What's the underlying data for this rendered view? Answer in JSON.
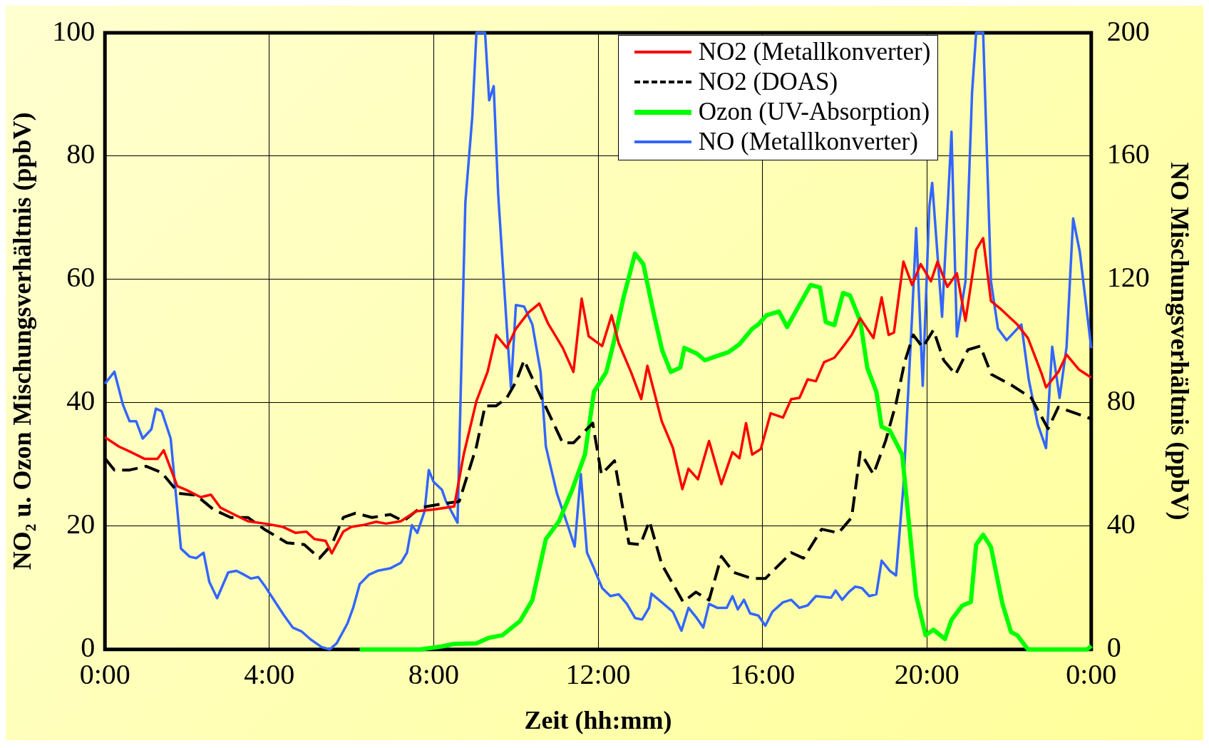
{
  "chart_data": {
    "type": "line",
    "xlabel": "Zeit (hh:mm)",
    "ylabel": "NO₂ u. Ozon Mischungsverhältnis (ppbV)",
    "y2label": "NO Mischungsverhältnis (ppbV)",
    "xlim": [
      0,
      24
    ],
    "xticks": [
      {
        "value": 0,
        "label": "0:00"
      },
      {
        "value": 4,
        "label": "4:00"
      },
      {
        "value": 8,
        "label": "8:00"
      },
      {
        "value": 12,
        "label": "12:00"
      },
      {
        "value": 16,
        "label": "16:00"
      },
      {
        "value": 20,
        "label": "20:00"
      },
      {
        "value": 24,
        "label": "0:00"
      }
    ],
    "ylim": [
      0,
      100
    ],
    "yticks": [
      0,
      20,
      40,
      60,
      80,
      100
    ],
    "y2lim": [
      0,
      200
    ],
    "y2ticks": [
      0,
      40,
      80,
      120,
      160,
      200
    ],
    "grid": true,
    "legend": "top right",
    "marker": "none",
    "series": [
      {
        "name": "NO2 (Metallkonverter)",
        "color": "#ff0000",
        "x": [
          0,
          0.34,
          0.6,
          0.97,
          1.28,
          1.43,
          1.76,
          2.0,
          2.33,
          2.58,
          2.81,
          3.17,
          3.48,
          3.9,
          4.32,
          4.64,
          4.9,
          5.1,
          5.37,
          5.52,
          5.8,
          6.0,
          6.3,
          6.6,
          6.84,
          7.2,
          7.57,
          8.0,
          8.5,
          8.73,
          9.04,
          9.31,
          9.52,
          9.78,
          10.0,
          10.3,
          10.57,
          10.78,
          11.14,
          11.4,
          11.6,
          11.77,
          12.1,
          12.33,
          12.5,
          12.8,
          13.05,
          13.2,
          13.55,
          13.82,
          14.05,
          14.2,
          14.43,
          14.7,
          15.0,
          15.27,
          15.44,
          15.6,
          15.75,
          15.96,
          16.2,
          16.5,
          16.7,
          16.9,
          17.1,
          17.3,
          17.5,
          17.75,
          17.96,
          18.17,
          18.38,
          18.7,
          18.9,
          19.07,
          19.2,
          19.43,
          19.64,
          19.85,
          20.1,
          20.26,
          20.5,
          20.73,
          20.94,
          21.2,
          21.37,
          21.56,
          21.8,
          22.2,
          22.46,
          22.8,
          22.9,
          23.2,
          23.4,
          23.7,
          24
        ],
        "values": [
          34.4,
          32.9,
          32.1,
          30.9,
          30.9,
          32.3,
          26.5,
          25.8,
          24.7,
          25.1,
          23.0,
          21.8,
          20.8,
          20.4,
          19.9,
          18.9,
          19.1,
          17.9,
          17.6,
          15.6,
          19.1,
          19.9,
          20.2,
          20.7,
          20.4,
          20.8,
          22.4,
          22.7,
          23.2,
          31.6,
          40.3,
          45.0,
          51.0,
          48.9,
          52.0,
          54.6,
          56.1,
          52.9,
          48.9,
          45.0,
          56.9,
          50.8,
          49.2,
          54.2,
          49.7,
          45.0,
          40.6,
          46.0,
          37.0,
          32.7,
          26.0,
          29.3,
          27.6,
          33.8,
          26.8,
          32.0,
          31.0,
          36.7,
          31.6,
          32.5,
          38.3,
          37.6,
          40.6,
          40.8,
          43.8,
          43.5,
          46.6,
          47.3,
          49.1,
          51.0,
          53.7,
          50.5,
          57.1,
          51.0,
          51.4,
          62.9,
          59.1,
          62.5,
          59.7,
          62.9,
          58.8,
          61.0,
          53.3,
          64.8,
          66.7,
          56.5,
          55.2,
          52.7,
          50.5,
          44.6,
          42.5,
          45.0,
          47.8,
          45.4,
          44.1
        ]
      },
      {
        "name": "NO2 (DOAS)",
        "color": "#000000",
        "line_style": "dashed",
        "x": [
          0,
          0.23,
          0.6,
          1.0,
          1.38,
          1.8,
          2.22,
          2.64,
          3.06,
          3.48,
          3.9,
          4.43,
          4.85,
          5.22,
          5.52,
          5.8,
          6.1,
          6.5,
          6.94,
          7.26,
          7.68,
          8.2,
          8.62,
          9.04,
          9.25,
          9.52,
          9.78,
          10.0,
          10.2,
          10.5,
          11.14,
          11.4,
          11.87,
          12.08,
          12.4,
          12.75,
          13.03,
          13.25,
          13.55,
          14.07,
          14.38,
          14.7,
          15.0,
          15.3,
          15.75,
          16.07,
          16.7,
          17.0,
          17.44,
          17.85,
          18.17,
          18.38,
          18.7,
          19.0,
          19.25,
          19.46,
          19.67,
          19.9,
          20.16,
          20.41,
          20.7,
          21.0,
          21.3,
          21.57,
          22.05,
          22.54,
          22.95,
          23.2,
          24
        ],
        "values": [
          31.0,
          29.1,
          29.1,
          29.7,
          28.7,
          25.3,
          25.0,
          22.7,
          21.4,
          21.4,
          19.4,
          17.3,
          17.0,
          14.8,
          17.0,
          21.4,
          22.1,
          21.4,
          21.9,
          20.8,
          23.0,
          23.6,
          24.0,
          32.9,
          39.5,
          39.5,
          40.8,
          43.4,
          46.9,
          42.5,
          33.5,
          33.5,
          36.7,
          28.4,
          30.6,
          17.2,
          17.0,
          20.8,
          13.8,
          7.7,
          9.3,
          8.0,
          15.1,
          12.5,
          11.5,
          11.5,
          15.7,
          14.8,
          19.5,
          18.9,
          21.4,
          32.0,
          28.4,
          33.9,
          39.9,
          46.6,
          51.0,
          49.0,
          51.8,
          46.9,
          44.6,
          48.6,
          49.2,
          44.6,
          42.9,
          40.8,
          35.8,
          39.3,
          37.4
        ]
      },
      {
        "name": "Ozon (UV-Absorption)",
        "color": "#00ff00",
        "x": [
          6.2,
          7.68,
          8.2,
          8.5,
          9.04,
          9.35,
          9.67,
          10.1,
          10.4,
          10.73,
          11.05,
          11.37,
          11.68,
          11.9,
          12.2,
          12.37,
          12.62,
          12.9,
          13.1,
          13.35,
          13.56,
          13.77,
          14.0,
          14.1,
          14.4,
          14.6,
          14.9,
          15.17,
          15.44,
          15.75,
          15.9,
          16.1,
          16.4,
          16.6,
          16.9,
          17.17,
          17.4,
          17.54,
          17.75,
          17.96,
          18.13,
          18.38,
          18.55,
          18.77,
          18.9,
          19.1,
          19.4,
          19.74,
          19.97,
          20.16,
          20.44,
          20.6,
          20.86,
          21.07,
          21.2,
          21.37,
          21.56,
          21.84,
          22.05,
          22.2,
          22.46,
          23.9,
          24
        ],
        "values": [
          0,
          0,
          0.5,
          0.9,
          1.0,
          1.9,
          2.3,
          4.6,
          8.0,
          17.9,
          20.8,
          25.9,
          31.6,
          41.8,
          45.0,
          49.5,
          57.1,
          64.2,
          62.5,
          54.6,
          48.5,
          45.0,
          45.7,
          48.9,
          48.0,
          46.9,
          47.6,
          48.2,
          49.5,
          52.0,
          52.7,
          54.2,
          54.8,
          52.3,
          55.9,
          59.1,
          58.7,
          53.1,
          52.6,
          57.8,
          57.4,
          53.3,
          45.7,
          41.8,
          36.1,
          35.5,
          31.6,
          8.7,
          2.3,
          3.2,
          1.7,
          4.8,
          7.1,
          7.7,
          17.0,
          18.6,
          16.6,
          7.4,
          2.8,
          2.3,
          0,
          0,
          0.6
        ]
      },
      {
        "name": "NO (Metallkonverter)",
        "color": "#3366ff",
        "axis": "y2",
        "x": [
          0,
          0.23,
          0.44,
          0.6,
          0.76,
          0.92,
          1.13,
          1.24,
          1.38,
          1.6,
          1.85,
          2.06,
          2.22,
          2.4,
          2.54,
          2.73,
          3.0,
          3.2,
          3.35,
          3.55,
          3.73,
          3.9,
          4.11,
          4.36,
          4.57,
          4.78,
          5.0,
          5.27,
          5.47,
          5.64,
          5.9,
          6.04,
          6.2,
          6.42,
          6.63,
          6.94,
          7.2,
          7.35,
          7.47,
          7.6,
          7.78,
          7.88,
          8.0,
          8.2,
          8.3,
          8.58,
          8.77,
          8.94,
          9.04,
          9.25,
          9.35,
          9.46,
          9.57,
          9.78,
          9.88,
          10.0,
          10.2,
          10.4,
          10.6,
          10.73,
          11.0,
          11.26,
          11.43,
          11.58,
          11.73,
          11.9,
          12.1,
          12.3,
          12.5,
          12.7,
          12.9,
          13.07,
          13.24,
          13.3,
          13.55,
          13.82,
          14.03,
          14.2,
          14.4,
          14.56,
          14.7,
          14.9,
          15.13,
          15.27,
          15.4,
          15.55,
          15.7,
          15.9,
          16.07,
          16.24,
          16.5,
          16.7,
          16.9,
          17.1,
          17.3,
          17.67,
          17.78,
          17.94,
          18.1,
          18.26,
          18.42,
          18.6,
          18.77,
          18.9,
          19.1,
          19.25,
          19.43,
          19.64,
          19.74,
          19.9,
          20.06,
          20.13,
          20.37,
          20.6,
          20.73,
          20.94,
          21.1,
          21.2,
          21.37,
          21.56,
          21.73,
          21.94,
          22.3,
          22.48,
          22.7,
          22.9,
          23.05,
          23.23,
          23.4,
          23.56,
          23.72,
          24
        ],
        "values": [
          86.2,
          90.1,
          79.3,
          74.0,
          74.0,
          68.4,
          71.4,
          78.1,
          77.3,
          68.4,
          32.7,
          30.1,
          29.6,
          31.4,
          21.9,
          16.6,
          25.0,
          25.5,
          24.5,
          23.0,
          23.5,
          20.4,
          16.1,
          11.0,
          7.1,
          5.9,
          3.3,
          0.8,
          0,
          2.0,
          8.4,
          13.5,
          21.2,
          24.2,
          25.5,
          26.3,
          28.1,
          31.4,
          40.3,
          37.8,
          44.9,
          58.2,
          54.3,
          51.8,
          48.0,
          41.1,
          144.9,
          173.0,
          200,
          200,
          178.1,
          182.7,
          147.4,
          104.1,
          84.9,
          111.7,
          111.2,
          105.4,
          90.1,
          65.8,
          50.5,
          40.3,
          33.4,
          56.9,
          31.4,
          26.3,
          19.9,
          17.3,
          17.9,
          14.8,
          10.2,
          9.7,
          13.5,
          18.1,
          15.3,
          12.2,
          6.1,
          13.5,
          10.2,
          7.1,
          14.8,
          13.5,
          13.5,
          17.3,
          13.0,
          16.1,
          11.7,
          11.0,
          7.7,
          12.2,
          15.3,
          16.1,
          13.5,
          14.3,
          17.3,
          16.8,
          19.1,
          16.1,
          18.6,
          20.4,
          19.9,
          17.3,
          17.9,
          28.8,
          25.5,
          24.0,
          53.1,
          107.9,
          136.7,
          85.5,
          143.6,
          151.3,
          107.9,
          167.9,
          101.5,
          119.4,
          180.6,
          200,
          200,
          119.4,
          104.1,
          100.3,
          105.4,
          87.5,
          73.0,
          65.3,
          98.2,
          81.6,
          98.2,
          139.8,
          129.1,
          97.7
        ]
      }
    ]
  }
}
